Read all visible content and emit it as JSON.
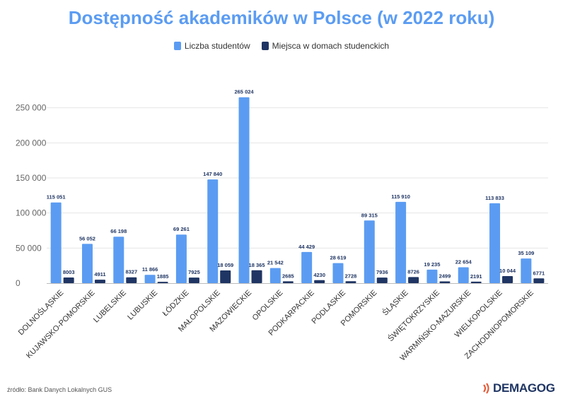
{
  "chart_data": {
    "type": "bar",
    "title": "Dostępność akademików w Polsce (w 2022 roku)",
    "categories": [
      "DOLNOŚLĄSKIE",
      "KUJAWSKO-POMORSKIE",
      "LUBELSKIE",
      "LUBUSKIE",
      "ŁÓDZKIE",
      "MAŁOPOLSKIE",
      "MAZOWIECKIE",
      "OPOLSKIE",
      "PODKARPACKIE",
      "PODLASKIE",
      "POMORSKIE",
      "ŚLĄSKIE",
      "ŚWIĘTOKRZYSKIE",
      "WARMIŃSKO-MAZURSKIE",
      "WIELKOPOLSKIE",
      "ZACHODNIOPOMORSKIE"
    ],
    "series": [
      {
        "name": "Liczba studentów",
        "color": "#5b9cf2",
        "values": [
          115051,
          56052,
          66198,
          11866,
          69261,
          147840,
          265024,
          21542,
          44429,
          28619,
          89315,
          115910,
          19235,
          22654,
          113833,
          35109
        ],
        "labels": [
          "115 051",
          "56 052",
          "66 198",
          "11 866",
          "69 261",
          "147 840",
          "265 024",
          "21 542",
          "44 429",
          "28 619",
          "89 315",
          "115 910",
          "19 235",
          "22 654",
          "113 833",
          "35 109"
        ]
      },
      {
        "name": "Miejsca w domach studenckich",
        "color": "#1f3563",
        "values": [
          8003,
          4911,
          8327,
          1885,
          7925,
          18059,
          18365,
          2685,
          4230,
          2728,
          7936,
          8726,
          2499,
          2191,
          10044,
          6771
        ],
        "labels": [
          "8003",
          "4911",
          "8327",
          "1885",
          "7925",
          "18 059",
          "18 365",
          "2685",
          "4230",
          "2728",
          "7936",
          "8726",
          "2499",
          "2191",
          "10 044",
          "6771"
        ]
      }
    ],
    "ylim": [
      0,
      300000
    ],
    "yticks": [
      0,
      50000,
      100000,
      150000,
      200000,
      250000
    ],
    "ytick_labels": [
      "0",
      "50 000",
      "100 000",
      "150 000",
      "200 000",
      "250 000"
    ],
    "grid": true,
    "legend_position": "top-center"
  },
  "footer": {
    "source": "źródło: Bank Danych Lokalnych GUS",
    "logo": "DEMAGOG"
  }
}
